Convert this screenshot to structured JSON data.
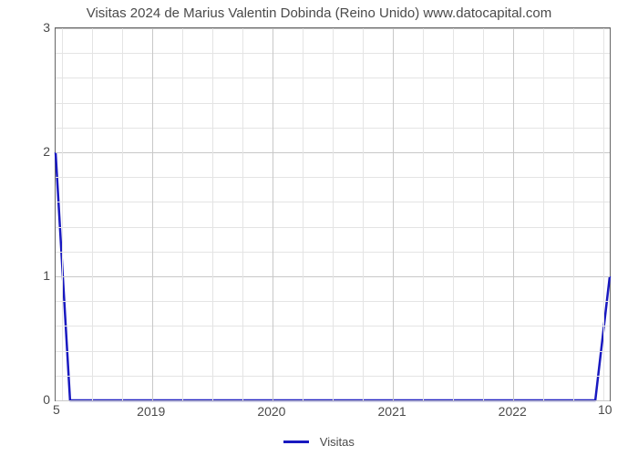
{
  "chart": {
    "type": "line",
    "title": "Visitas 2024 de Marius Valentin Dobinda (Reino Unido) www.datocapital.com",
    "title_fontsize": 15,
    "title_color": "#4a4a4a",
    "background_color": "#ffffff",
    "plot_border_color": "#666666",
    "grid_major_color": "#c8c8c8",
    "grid_minor_color": "#e4e4e4",
    "y": {
      "min": 0,
      "max": 3,
      "major_ticks": [
        0,
        1,
        2,
        3
      ],
      "minor_step": 0.2,
      "tick_labels": [
        "0",
        "1",
        "2",
        "3"
      ],
      "tick_fontsize": 14
    },
    "x": {
      "min": 2018.2,
      "max": 2022.8,
      "major_ticks": [
        2019,
        2020,
        2021,
        2022
      ],
      "minor_step": 0.25,
      "tick_labels": [
        "2019",
        "2020",
        "2021",
        "2022"
      ],
      "tick_fontsize": 14
    },
    "series": {
      "label": "Visitas",
      "color": "#1919c0",
      "line_width": 2.5,
      "points": [
        {
          "x": 2018.2,
          "y": 2.0
        },
        {
          "x": 2018.32,
          "y": 0.0
        },
        {
          "x": 2022.68,
          "y": 0.0
        },
        {
          "x": 2022.8,
          "y": 1.0
        }
      ],
      "start_label": "5",
      "end_label": "10"
    },
    "legend": {
      "position": "bottom-center",
      "fontsize": 13
    }
  }
}
